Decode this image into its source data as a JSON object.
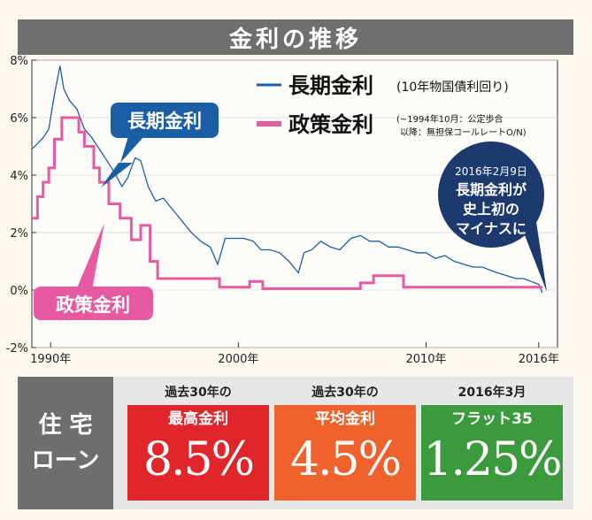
{
  "title": "金利の推移",
  "colors": {
    "long_term": "#1a5fa6",
    "policy": "#e55aa0",
    "callout_dark": "#1d3a6e",
    "red": "#e0262a",
    "orange": "#f0622b",
    "green": "#3a9a3c"
  },
  "chart_data": {
    "type": "line",
    "xlim": [
      1989,
      2017
    ],
    "ylim": [
      -2,
      8
    ],
    "x_ticks": [
      1990,
      2000,
      2010,
      2016
    ],
    "x_tick_labels": [
      "1990年",
      "2000年",
      "2010年",
      "2016年"
    ],
    "y_ticks": [
      8,
      6,
      4,
      2,
      0,
      -2
    ],
    "y_tick_labels": [
      "8%",
      "6%",
      "4%",
      "2%",
      "0%",
      "-2%"
    ],
    "series": [
      {
        "name": "長期金利",
        "legend_note": "(10年物国債利回り)",
        "color": "#1a5fa6",
        "x": [
          1989.0,
          1989.3,
          1989.6,
          1989.9,
          1990.2,
          1990.5,
          1990.7,
          1991.0,
          1991.4,
          1991.8,
          1992.2,
          1992.7,
          1993.0,
          1993.4,
          1993.8,
          1994.1,
          1994.5,
          1994.8,
          1995.2,
          1995.6,
          1996.0,
          1996.5,
          1997.0,
          1997.5,
          1998.0,
          1998.5,
          1998.9,
          1999.3,
          1999.8,
          2000.3,
          2000.8,
          2001.2,
          2001.7,
          2002.2,
          2002.7,
          2003.2,
          2003.5,
          2003.9,
          2004.4,
          2004.9,
          2005.4,
          2006.0,
          2006.5,
          2007.0,
          2007.5,
          2008.0,
          2008.5,
          2009.0,
          2009.5,
          2010.0,
          2010.5,
          2011.0,
          2011.5,
          2012.0,
          2012.5,
          2013.0,
          2013.4,
          2013.8,
          2014.3,
          2014.8,
          2015.2,
          2015.6,
          2016.0,
          2016.2
        ],
        "y": [
          4.9,
          5.1,
          5.3,
          5.6,
          6.8,
          7.8,
          7.0,
          6.6,
          6.3,
          5.6,
          5.3,
          4.8,
          4.5,
          4.1,
          3.6,
          3.9,
          4.6,
          4.5,
          3.6,
          3.1,
          3.2,
          2.8,
          2.4,
          2.0,
          1.7,
          1.5,
          0.9,
          1.8,
          1.8,
          1.8,
          1.7,
          1.4,
          1.4,
          1.3,
          1.0,
          0.6,
          1.3,
          1.4,
          1.7,
          1.5,
          1.4,
          1.8,
          1.9,
          1.7,
          1.7,
          1.5,
          1.5,
          1.4,
          1.3,
          1.3,
          1.1,
          1.2,
          1.0,
          0.9,
          0.8,
          0.8,
          0.7,
          0.6,
          0.5,
          0.4,
          0.4,
          0.3,
          0.2,
          -0.1
        ]
      },
      {
        "name": "政策金利",
        "legend_note_line1": "(~1994年10月：公定歩合",
        "legend_note_line2": "以降：無担保コールレートO/N)",
        "color": "#e55aa0",
        "x": [
          1989.0,
          1989.3,
          1989.3,
          1989.6,
          1989.6,
          1989.9,
          1989.9,
          1990.2,
          1990.2,
          1990.6,
          1990.6,
          1991.5,
          1991.5,
          1991.8,
          1991.8,
          1992.3,
          1992.3,
          1992.6,
          1992.6,
          1993.1,
          1993.1,
          1993.7,
          1993.7,
          1994.3,
          1994.3,
          1994.8,
          1994.8,
          1995.3,
          1995.3,
          1995.7,
          1995.7,
          1999.0,
          1999.0,
          2000.6,
          2000.6,
          2001.3,
          2001.3,
          2006.5,
          2006.5,
          2007.2,
          2007.2,
          2008.8,
          2008.8,
          2016.2
        ],
        "y": [
          2.5,
          2.5,
          3.25,
          3.25,
          3.75,
          3.75,
          4.25,
          4.25,
          5.25,
          5.25,
          6.0,
          6.0,
          5.5,
          5.5,
          5.0,
          5.0,
          4.25,
          4.25,
          3.75,
          3.75,
          3.0,
          3.0,
          2.5,
          2.5,
          1.75,
          1.75,
          2.25,
          2.25,
          1.0,
          1.0,
          0.4,
          0.4,
          0.1,
          0.1,
          0.3,
          0.3,
          0.05,
          0.05,
          0.25,
          0.25,
          0.5,
          0.5,
          0.1,
          0.1
        ]
      }
    ],
    "labels": {
      "long_term": "長期金利",
      "policy": "政策金利"
    },
    "annotation": [
      "2016年2月9日",
      "長期金利が",
      "史上初の",
      "マイナスに"
    ]
  },
  "housing_loan": {
    "heading_line1": "住 宅",
    "heading_line2": "ローン",
    "rates": [
      {
        "caption": "過去30年の",
        "label": "最高金利",
        "value": "8.5%"
      },
      {
        "caption": "過去30年の",
        "label": "平均金利",
        "value": "4.5%"
      },
      {
        "caption": "2016年3月",
        "label": "フラット35",
        "value": "1.25%"
      }
    ]
  }
}
